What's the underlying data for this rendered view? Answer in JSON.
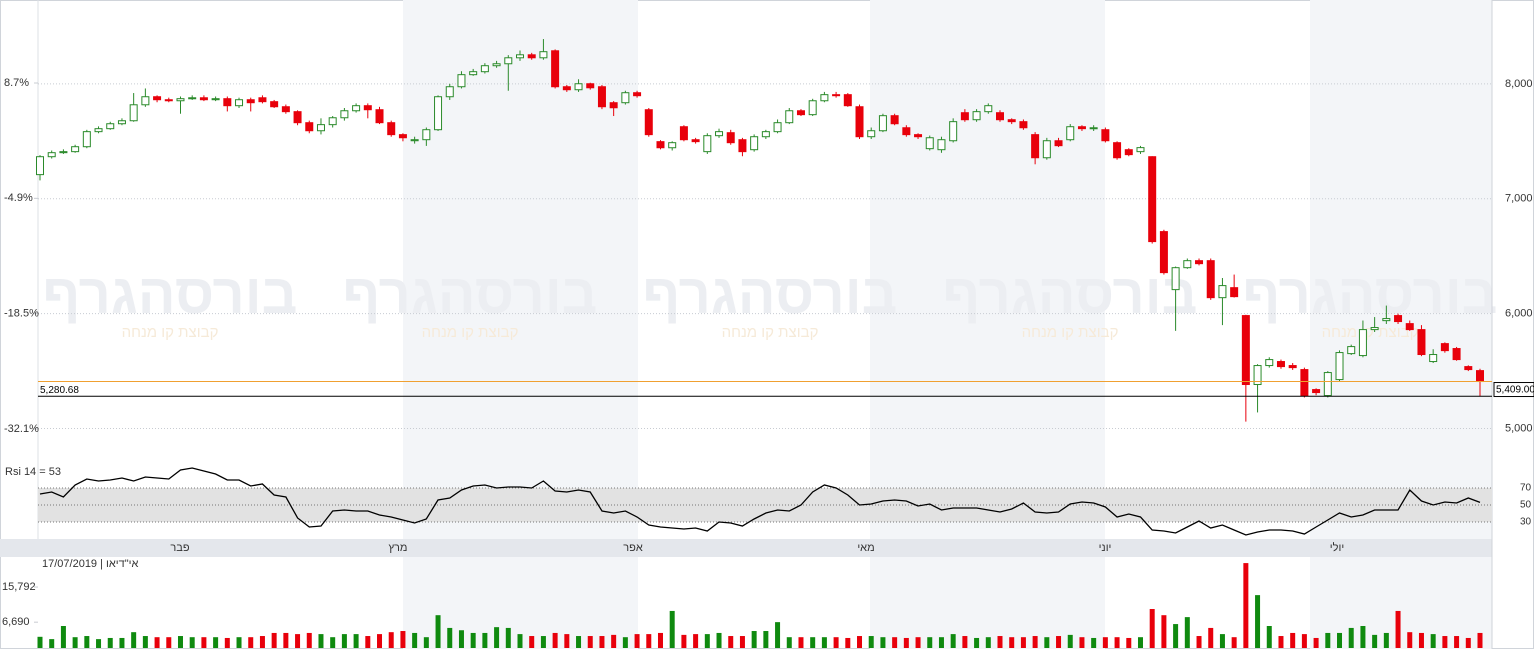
{
  "watermark": {
    "title": "בורסהגרף",
    "subtitle": "קבוצת קו מנחה"
  },
  "chart_data": [
    {
      "type": "candlestick",
      "xtick_labels": [
        "פבר",
        "מרץ",
        "אפר",
        "מאי",
        "יוני",
        "יולי"
      ],
      "up_color": "#2a8a2a",
      "down_color": "#e8000b",
      "open": [
        7210,
        7366,
        7401,
        7410,
        7453,
        7584,
        7610,
        7653,
        7679,
        7818,
        7888,
        7862,
        7853,
        7871,
        7879,
        7862,
        7871,
        7810,
        7862,
        7879,
        7845,
        7801,
        7758,
        7662,
        7592,
        7645,
        7705,
        7766,
        7810,
        7775,
        7662,
        7558,
        7505,
        7514,
        7601,
        7888,
        7975,
        8080,
        8106,
        8158,
        8175,
        8227,
        8253,
        8227,
        8288,
        7975,
        7949,
        8001,
        7975,
        7836,
        7836,
        7923,
        7775,
        7497,
        7444,
        7627,
        7514,
        7410,
        7549,
        7575,
        7514,
        7427,
        7540,
        7584,
        7662,
        7766,
        7732,
        7853,
        7906,
        7906,
        7801,
        7540,
        7592,
        7723,
        7618,
        7558,
        7436,
        7427,
        7505,
        7749,
        7688,
        7758,
        7749,
        7688,
        7671,
        7558,
        7357,
        7505,
        7514,
        7627,
        7610,
        7601,
        7488,
        7427,
        7410,
        7366,
        6714,
        6209,
        6400,
        6461,
        6461,
        6139,
        6226,
        5983,
        5383,
        5548,
        5583,
        5548,
        5513,
        5339,
        5287,
        5426,
        5652,
        5635,
        5861,
        5939,
        5983,
        5913,
        5861,
        5583,
        5739,
        5696,
        5539,
        5504
      ],
      "high": [
        7380,
        7420,
        7430,
        7470,
        7600,
        7630,
        7670,
        7700,
        7920,
        7960,
        7900,
        7880,
        7890,
        7900,
        7900,
        7890,
        7890,
        7880,
        7880,
        7900,
        7860,
        7820,
        7770,
        7680,
        7700,
        7720,
        7790,
        7830,
        7830,
        7800,
        7680,
        7570,
        7540,
        7620,
        7900,
        8000,
        8110,
        8130,
        8180,
        8200,
        8250,
        8290,
        8270,
        8390,
        8300,
        7990,
        8040,
        8010,
        7990,
        7850,
        7940,
        7940,
        7790,
        7510,
        7500,
        7640,
        7530,
        7570,
        7610,
        7600,
        7530,
        7560,
        7600,
        7690,
        7790,
        7780,
        7870,
        7930,
        7930,
        7920,
        7820,
        7620,
        7740,
        7740,
        7640,
        7570,
        7550,
        7540,
        7700,
        7780,
        7780,
        7830,
        7770,
        7700,
        7690,
        7580,
        7530,
        7530,
        7650,
        7640,
        7640,
        7620,
        7500,
        7440,
        7460,
        7370,
        6730,
        6410,
        6480,
        6480,
        6480,
        6310,
        6340,
        5990,
        5560,
        5620,
        5600,
        5570,
        5530,
        5350,
        5500,
        5680,
        5730,
        5940,
        5970,
        6070,
        6000,
        5940,
        5900,
        5690,
        5750,
        5710,
        5550,
        5520
      ],
      "low": [
        7160,
        7350,
        7390,
        7400,
        7440,
        7570,
        7600,
        7640,
        7670,
        7800,
        7840,
        7840,
        7740,
        7860,
        7850,
        7850,
        7760,
        7790,
        7760,
        7830,
        7790,
        7740,
        7640,
        7570,
        7560,
        7620,
        7680,
        7750,
        7700,
        7650,
        7540,
        7500,
        7480,
        7460,
        7590,
        7860,
        7960,
        8070,
        8090,
        8140,
        7940,
        8200,
        8210,
        8210,
        7960,
        7930,
        7930,
        7950,
        7780,
        7720,
        7820,
        7880,
        7540,
        7430,
        7420,
        7500,
        7480,
        7390,
        7530,
        7470,
        7370,
        7410,
        7520,
        7570,
        7650,
        7720,
        7720,
        7840,
        7880,
        7800,
        7520,
        7520,
        7580,
        7640,
        7540,
        7520,
        7420,
        7400,
        7490,
        7670,
        7670,
        7740,
        7670,
        7650,
        7600,
        7300,
        7340,
        7450,
        7500,
        7590,
        7590,
        7490,
        7340,
        7370,
        7390,
        6610,
        6340,
        5850,
        6390,
        6420,
        6120,
        5900,
        6140,
        5060,
        5140,
        5530,
        5520,
        5510,
        5270,
        5290,
        5270,
        5410,
        5640,
        5620,
        5840,
        5910,
        5910,
        5850,
        5630,
        5570,
        5660,
        5590,
        5500,
        5280
      ],
      "close": [
        7366,
        7401,
        7410,
        7453,
        7584,
        7610,
        7653,
        7679,
        7818,
        7888,
        7862,
        7853,
        7871,
        7879,
        7862,
        7871,
        7810,
        7862,
        7836,
        7845,
        7801,
        7758,
        7662,
        7592,
        7645,
        7705,
        7766,
        7810,
        7775,
        7662,
        7558,
        7531,
        7514,
        7601,
        7888,
        7975,
        8080,
        8106,
        8158,
        8175,
        8227,
        8253,
        8227,
        8280,
        7975,
        7949,
        8001,
        7966,
        7801,
        7792,
        7923,
        7897,
        7558,
        7444,
        7488,
        7514,
        7497,
        7549,
        7584,
        7488,
        7410,
        7540,
        7584,
        7662,
        7766,
        7732,
        7853,
        7906,
        7897,
        7810,
        7540,
        7592,
        7723,
        7653,
        7558,
        7540,
        7531,
        7514,
        7671,
        7688,
        7758,
        7810,
        7688,
        7671,
        7618,
        7357,
        7505,
        7462,
        7627,
        7610,
        7618,
        7505,
        7357,
        7384,
        7445,
        6627,
        6357,
        6400,
        6461,
        6435,
        6139,
        6244,
        6148,
        5383,
        5548,
        5600,
        5539,
        5530,
        5287,
        5313,
        5487,
        5661,
        5713,
        5861,
        5879,
        5957,
        5931,
        5861,
        5644,
        5644,
        5678,
        5600,
        5513,
        5409
      ],
      "ylim": [
        4900,
        8730
      ],
      "yticks": [
        {
          "value": 5000,
          "label": "5,000"
        },
        {
          "value": 6000,
          "label": "6,000"
        },
        {
          "value": 7000,
          "label": "7,000"
        },
        {
          "value": 8000,
          "label": "8,000"
        }
      ],
      "y2lim": [
        -33.4,
        18.49
      ],
      "y2ticks": [
        {
          "value": -32.1,
          "label": "-32.1%"
        },
        {
          "value": -18.5,
          "label": "-18.5%"
        },
        {
          "value": -4.9,
          "label": "-4.9%"
        },
        {
          "value": 8.7,
          "label": "8.7%"
        }
      ],
      "grid": true,
      "lines": [
        {
          "value": 5409,
          "label": "5,409.00",
          "color": "#f0a030"
        },
        {
          "value": 5280.68,
          "label": "5,280.68",
          "color": "#000000"
        }
      ]
    },
    {
      "type": "line",
      "title": "Rsi 14 = 53",
      "color": "#000000",
      "values": [
        62.9,
        65.3,
        59.4,
        73.5,
        80.6,
        78.2,
        79.4,
        81.8,
        78.2,
        82.9,
        81.8,
        80.6,
        91.2,
        93.5,
        90,
        86.5,
        79.4,
        79.4,
        72.4,
        74.7,
        61.8,
        59.4,
        34.7,
        24.1,
        25.3,
        42.9,
        44.1,
        42.9,
        42.9,
        38.2,
        35.9,
        32.4,
        28.8,
        33.5,
        55.9,
        58.2,
        67.6,
        72.4,
        73.5,
        70,
        71.2,
        71.2,
        70,
        78.2,
        66.5,
        65.3,
        67.6,
        65.3,
        42.9,
        40.6,
        42.9,
        35.9,
        26.5,
        24.1,
        22.9,
        21.8,
        22.9,
        19.4,
        30,
        28.8,
        25.3,
        33.5,
        40.6,
        44.1,
        42.9,
        50,
        65.3,
        73.5,
        70,
        61.8,
        50,
        51.2,
        54.7,
        55.9,
        54.7,
        48.8,
        51.2,
        44.1,
        46.5,
        46.5,
        46.5,
        44.1,
        41.8,
        45.3,
        52.4,
        41.8,
        40.6,
        41.8,
        51.2,
        53.5,
        52.4,
        47.6,
        35.9,
        39.4,
        35.9,
        20.6,
        19.4,
        17.1,
        24.1,
        31.2,
        22.9,
        26.5,
        20.6,
        14.7,
        18.2,
        20.6,
        20.6,
        19.4,
        15.9,
        24.1,
        32.4,
        40.6,
        35.9,
        38.2,
        44.1,
        44.1,
        44.1,
        67.6,
        54.7,
        50,
        53.5,
        52.4,
        58.2,
        53
      ],
      "ylim": [
        10,
        100
      ],
      "yticks": [
        30,
        50,
        70
      ]
    },
    {
      "type": "bar",
      "title": "17/07/2019 | אי\"דיאו",
      "colors": {
        "up": "#0f8a0f",
        "down": "#e8000b"
      },
      "values": [
        2900,
        2300,
        5700,
        2800,
        3100,
        2300,
        2600,
        2600,
        4100,
        3100,
        2800,
        2800,
        3100,
        2800,
        2800,
        2800,
        2600,
        2800,
        2800,
        3100,
        3900,
        3900,
        3600,
        3900,
        3600,
        2800,
        3600,
        3600,
        3100,
        3600,
        4100,
        4400,
        3900,
        2800,
        8500,
        5200,
        4600,
        3900,
        3900,
        5400,
        5200,
        3600,
        3100,
        3100,
        3900,
        3600,
        3100,
        3100,
        3100,
        3400,
        2800,
        3600,
        3600,
        3900,
        9600,
        3400,
        3600,
        3600,
        3900,
        3100,
        3100,
        4400,
        4400,
        6700,
        2800,
        2800,
        2800,
        2800,
        2800,
        2600,
        3100,
        3100,
        2800,
        2800,
        2600,
        2800,
        2800,
        2800,
        3600,
        3100,
        2600,
        2800,
        3100,
        2800,
        2800,
        3100,
        2800,
        3100,
        3400,
        2800,
        2600,
        2800,
        2800,
        2600,
        2800,
        10100,
        8500,
        6200,
        8000,
        3100,
        5200,
        3600,
        2800,
        22000,
        13700,
        5700,
        3100,
        3900,
        3600,
        2600,
        3900,
        3900,
        5200,
        5700,
        3400,
        3900,
        9600,
        4100,
        3900,
        3600,
        3100,
        3100,
        2600,
        3900
      ],
      "ylim": [
        0,
        22800
      ],
      "yticks": [
        {
          "value": 6690,
          "label": "6,690"
        },
        {
          "value": 15792,
          "label": "15,792"
        }
      ]
    }
  ]
}
